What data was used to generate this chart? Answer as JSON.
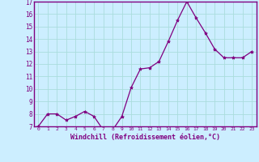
{
  "x": [
    0,
    1,
    2,
    3,
    4,
    5,
    6,
    7,
    8,
    9,
    10,
    11,
    12,
    13,
    14,
    15,
    16,
    17,
    18,
    19,
    20,
    21,
    22,
    23
  ],
  "y": [
    7.0,
    8.0,
    8.0,
    7.5,
    7.8,
    8.2,
    7.8,
    6.7,
    6.7,
    7.8,
    10.1,
    11.6,
    11.7,
    12.2,
    13.8,
    15.5,
    17.0,
    15.7,
    14.5,
    13.2,
    12.5,
    12.5,
    12.5,
    13.0
  ],
  "line_color": "#800080",
  "marker": "*",
  "marker_size": 3,
  "bg_color": "#cceeff",
  "grid_color": "#aadddd",
  "xlabel": "Windchill (Refroidissement éolien,°C)",
  "ylim": [
    7,
    17
  ],
  "xlim": [
    -0.5,
    23.5
  ],
  "yticks": [
    7,
    8,
    9,
    10,
    11,
    12,
    13,
    14,
    15,
    16,
    17
  ],
  "xticks": [
    0,
    1,
    2,
    3,
    4,
    5,
    6,
    7,
    8,
    9,
    10,
    11,
    12,
    13,
    14,
    15,
    16,
    17,
    18,
    19,
    20,
    21,
    22,
    23
  ],
  "axis_color": "#800080",
  "label_color": "#800080"
}
